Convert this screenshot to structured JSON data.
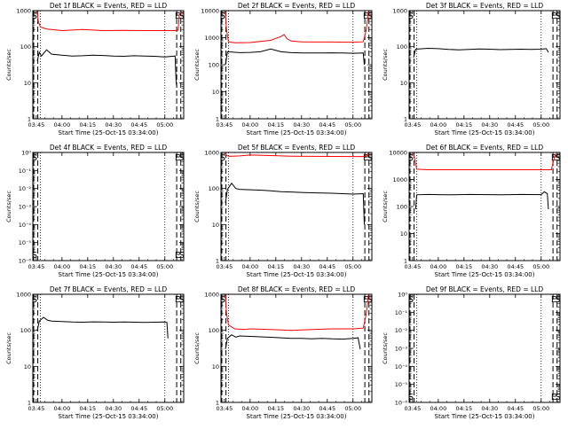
{
  "chart_data": [
    {
      "type": "line",
      "title": "Det 1f BLACK = Events, RED = LLD",
      "ylabel": "Counts/sec",
      "xlabel": "Start Time (25-Oct-15 03:34:00)",
      "xlim": [
        3.7167,
        5.1833
      ],
      "x_ticks": [
        "03:45",
        "04:00",
        "04:15",
        "04:30",
        "04:45",
        "05:00"
      ],
      "yscale": "log",
      "y_ticks": [
        {
          "value": 1000,
          "label": "1000"
        },
        {
          "value": 100,
          "label": "100"
        },
        {
          "value": 10,
          "label": "10"
        },
        {
          "value": 1,
          "label": "1"
        }
      ],
      "dashed_markers": [
        3.725,
        3.765,
        5.115,
        5.155
      ],
      "dotted_markers": [
        3.79,
        5.0
      ],
      "marker_labels": [
        {
          "text": "S",
          "x": 3.725
        },
        {
          "text": "E",
          "x": 5.115
        },
        {
          "text": "S",
          "x": 5.155
        }
      ],
      "series": [
        {
          "color": "#000000",
          "x": [
            3.76,
            3.78,
            3.8,
            3.85,
            3.9,
            4.0,
            4.1,
            4.2,
            4.3,
            4.4,
            4.5,
            4.6,
            4.7,
            4.8,
            4.9,
            5.0,
            5.1,
            5.11,
            5.115
          ],
          "y": [
            40,
            70,
            55,
            82,
            62,
            58,
            55,
            56,
            58,
            57,
            55,
            54,
            56,
            55,
            54,
            52,
            55,
            10,
            8
          ]
        },
        {
          "color": "#ff0000",
          "x": [
            3.76,
            3.77,
            3.79,
            3.85,
            4.0,
            4.2,
            4.4,
            4.6,
            4.8,
            5.0,
            5.1,
            5.13,
            5.14,
            5.16
          ],
          "y": [
            950,
            500,
            350,
            310,
            280,
            300,
            280,
            285,
            280,
            280,
            280,
            290,
            750,
            950
          ]
        }
      ]
    },
    {
      "type": "line",
      "title": "Det 2f BLACK = Events, RED = LLD",
      "ylabel": "Counts/sec",
      "xlabel": "Start Time (25-Oct-15 03:34:00)",
      "xlim": [
        3.7167,
        5.1833
      ],
      "x_ticks": [
        "03:45",
        "04:00",
        "04:15",
        "04:30",
        "04:45",
        "05:00"
      ],
      "yscale": "log",
      "y_ticks": [
        {
          "value": 10000,
          "label": "10000"
        },
        {
          "value": 1000,
          "label": "1000"
        },
        {
          "value": 100,
          "label": "100"
        },
        {
          "value": 10,
          "label": "10"
        },
        {
          "value": 1,
          "label": "1"
        }
      ],
      "dashed_markers": [
        3.725,
        3.765,
        5.115,
        5.155
      ],
      "dotted_markers": [
        3.79,
        5.0
      ],
      "marker_labels": [
        {
          "text": "S",
          "x": 3.725
        },
        {
          "text": "E",
          "x": 5.115
        },
        {
          "text": "S",
          "x": 5.155
        }
      ],
      "series": [
        {
          "color": "#000000",
          "x": [
            3.76,
            3.78,
            3.9,
            4.0,
            4.1,
            4.2,
            4.3,
            4.4,
            4.5,
            4.6,
            4.7,
            4.8,
            4.9,
            5.0,
            5.1,
            5.11
          ],
          "y": [
            100,
            300,
            280,
            285,
            300,
            380,
            300,
            280,
            270,
            270,
            270,
            275,
            270,
            265,
            270,
            100
          ]
        },
        {
          "color": "#ff0000",
          "x": [
            3.76,
            3.77,
            3.79,
            3.85,
            4.0,
            4.2,
            4.3,
            4.33,
            4.36,
            4.4,
            4.5,
            4.6,
            4.8,
            5.0,
            5.1,
            5.13,
            5.15
          ],
          "y": [
            9000,
            2000,
            700,
            650,
            660,
            800,
            1100,
            1300,
            900,
            750,
            700,
            690,
            690,
            680,
            700,
            2000,
            9000
          ]
        }
      ]
    },
    {
      "type": "line",
      "title": "Det 3f BLACK = Events, RED = LLD",
      "ylabel": "Counts/sec",
      "xlabel": "Start Time (25-Oct-15 03:34:00)",
      "xlim": [
        3.7167,
        5.1833
      ],
      "x_ticks": [
        "03:45",
        "04:00",
        "04:15",
        "04:30",
        "04:45",
        "05:00"
      ],
      "yscale": "log",
      "y_ticks": [
        {
          "value": 1000,
          "label": "1000"
        },
        {
          "value": 100,
          "label": "100"
        },
        {
          "value": 10,
          "label": "10"
        },
        {
          "value": 1,
          "label": "1"
        }
      ],
      "dashed_markers": [
        3.725,
        3.765,
        5.115,
        5.155
      ],
      "dotted_markers": [
        3.79,
        5.0
      ],
      "marker_labels": [
        {
          "text": "S",
          "x": 3.725
        },
        {
          "text": "E",
          "x": 5.115
        },
        {
          "text": "S",
          "x": 5.155
        }
      ],
      "series": [
        {
          "color": "#000000",
          "x": [
            3.76,
            3.78,
            3.9,
            4.0,
            4.1,
            4.2,
            4.3,
            4.4,
            4.5,
            4.6,
            4.7,
            4.8,
            4.9,
            5.0,
            5.05,
            5.07
          ],
          "y": [
            50,
            85,
            90,
            88,
            84,
            82,
            84,
            86,
            85,
            83,
            84,
            85,
            84,
            85,
            88,
            70
          ]
        }
      ]
    },
    {
      "type": "line",
      "title": "Det 4f BLACK = Events, RED = LLD",
      "ylabel": "Counts/sec",
      "xlabel": "Start Time (25-Oct-15 03:34:00)",
      "xlim": [
        3.7167,
        5.1833
      ],
      "x_ticks": [
        "03:45",
        "04:00",
        "04:15",
        "04:30",
        "04:45",
        "05:00"
      ],
      "yscale": "log",
      "y_ticks": [
        {
          "value": 1e-06,
          "label": "10⁻⁶"
        },
        {
          "value": 1e-05,
          "label": "10⁻⁵"
        },
        {
          "value": 0.0001,
          "label": "10⁻⁴"
        },
        {
          "value": 0.001,
          "label": "10⁻³"
        },
        {
          "value": 0.01,
          "label": "10⁻²"
        },
        {
          "value": 0.1,
          "label": "10⁻¹"
        },
        {
          "value": 1,
          "label": "10⁰"
        }
      ],
      "dashed_markers": [
        3.725,
        3.765,
        5.115,
        5.155
      ],
      "dotted_markers": [
        3.79,
        5.0
      ],
      "marker_labels": [
        {
          "text": "S",
          "x": 3.725
        },
        {
          "text": "E",
          "x": 5.115
        },
        {
          "text": "S",
          "x": 5.155
        }
      ],
      "series": []
    },
    {
      "type": "line",
      "title": "Det 5f BLACK = Events, RED = LLD",
      "ylabel": "Counts/sec",
      "xlabel": "Start Time (25-Oct-15 03:34:00)",
      "xlim": [
        3.7167,
        5.1833
      ],
      "x_ticks": [
        "03:45",
        "04:00",
        "04:15",
        "04:30",
        "04:45",
        "05:00"
      ],
      "yscale": "log",
      "y_ticks": [
        {
          "value": 1000,
          "label": "1000"
        },
        {
          "value": 100,
          "label": "100"
        },
        {
          "value": 10,
          "label": "10"
        },
        {
          "value": 1,
          "label": "1"
        }
      ],
      "dashed_markers": [
        3.725,
        3.765,
        5.115,
        5.155
      ],
      "dotted_markers": [
        3.79,
        5.0
      ],
      "marker_labels": [
        {
          "text": "S",
          "x": 3.725
        },
        {
          "text": "E",
          "x": 5.115
        },
        {
          "text": "S",
          "x": 5.155
        }
      ],
      "series": [
        {
          "color": "#000000",
          "x": [
            3.76,
            3.78,
            3.82,
            3.86,
            3.9,
            4.0,
            4.1,
            4.2,
            4.3,
            4.4,
            4.5,
            4.6,
            4.7,
            4.8,
            4.9,
            5.0,
            5.1,
            5.11
          ],
          "y": [
            40,
            95,
            140,
            100,
            95,
            92,
            90,
            86,
            82,
            80,
            78,
            76,
            75,
            74,
            72,
            70,
            72,
            10
          ]
        },
        {
          "color": "#ff0000",
          "x": [
            3.76,
            3.77,
            3.8,
            3.9,
            4.0,
            4.2,
            4.4,
            4.6,
            4.8,
            5.0,
            5.1,
            5.13,
            5.15
          ],
          "y": [
            950,
            820,
            780,
            800,
            850,
            820,
            790,
            780,
            775,
            770,
            770,
            800,
            950
          ]
        }
      ]
    },
    {
      "type": "line",
      "title": "Det 6f BLACK = Events, RED = LLD",
      "ylabel": "Counts/sec",
      "xlabel": "Start Time (25-Oct-15 03:34:00)",
      "xlim": [
        3.7167,
        5.1833
      ],
      "x_ticks": [
        "03:45",
        "04:00",
        "04:15",
        "04:30",
        "04:45",
        "05:00"
      ],
      "yscale": "log",
      "y_ticks": [
        {
          "value": 10000,
          "label": "10000"
        },
        {
          "value": 1000,
          "label": "1000"
        },
        {
          "value": 100,
          "label": "100"
        },
        {
          "value": 10,
          "label": "10"
        },
        {
          "value": 1,
          "label": "1"
        }
      ],
      "dashed_markers": [
        3.725,
        3.765,
        5.115,
        5.155
      ],
      "dotted_markers": [
        3.79,
        5.0
      ],
      "marker_labels": [
        {
          "text": "S",
          "x": 3.725
        },
        {
          "text": "E",
          "x": 5.115
        },
        {
          "text": "S",
          "x": 5.155
        }
      ],
      "series": [
        {
          "color": "#000000",
          "x": [
            3.78,
            3.79,
            3.9,
            4.0,
            4.1,
            4.2,
            4.3,
            4.4,
            4.5,
            4.6,
            4.7,
            4.8,
            4.9,
            5.0,
            5.03,
            5.06,
            5.07
          ],
          "y": [
            80,
            270,
            280,
            275,
            270,
            275,
            280,
            278,
            275,
            272,
            275,
            280,
            278,
            275,
            350,
            300,
            80
          ]
        },
        {
          "color": "#ff0000",
          "x": [
            3.76,
            3.775,
            3.79,
            3.9,
            4.0,
            4.2,
            4.4,
            4.6,
            4.8,
            5.0,
            5.1,
            5.12,
            5.14
          ],
          "y": [
            9000,
            5000,
            2400,
            2300,
            2300,
            2300,
            2300,
            2300,
            2300,
            2300,
            2300,
            5000,
            9000
          ]
        }
      ]
    },
    {
      "type": "line",
      "title": "Det 7f BLACK = Events, RED = LLD",
      "ylabel": "Counts/sec",
      "xlabel": "Start Time (25-Oct-15 03:34:00)",
      "xlim": [
        3.7167,
        5.1833
      ],
      "x_ticks": [
        "03:45",
        "04:00",
        "04:15",
        "04:30",
        "04:45",
        "05:00"
      ],
      "yscale": "log",
      "y_ticks": [
        {
          "value": 1000,
          "label": "1000"
        },
        {
          "value": 100,
          "label": "100"
        },
        {
          "value": 10,
          "label": "10"
        },
        {
          "value": 1,
          "label": "1"
        }
      ],
      "dashed_markers": [
        3.725,
        3.765,
        5.115,
        5.155
      ],
      "dotted_markers": [
        3.79,
        5.0
      ],
      "marker_labels": [
        {
          "text": "S",
          "x": 3.725
        },
        {
          "text": "E",
          "x": 5.115
        },
        {
          "text": "S",
          "x": 5.155
        }
      ],
      "series": [
        {
          "color": "#000000",
          "x": [
            3.76,
            3.78,
            3.82,
            3.86,
            3.9,
            4.0,
            4.1,
            4.2,
            4.3,
            4.4,
            4.5,
            4.6,
            4.7,
            4.8,
            4.9,
            5.0,
            5.02,
            5.03
          ],
          "y": [
            100,
            180,
            230,
            190,
            180,
            175,
            170,
            168,
            172,
            170,
            168,
            170,
            168,
            165,
            168,
            170,
            165,
            60
          ]
        }
      ]
    },
    {
      "type": "line",
      "title": "Det 8f BLACK = Events, RED = LLD",
      "ylabel": "Counts/sec",
      "xlabel": "Start Time (25-Oct-15 03:34:00)",
      "xlim": [
        3.7167,
        5.1833
      ],
      "x_ticks": [
        "03:45",
        "04:00",
        "04:15",
        "04:30",
        "04:45",
        "05:00"
      ],
      "yscale": "log",
      "y_ticks": [
        {
          "value": 1000,
          "label": "1000"
        },
        {
          "value": 100,
          "label": "100"
        },
        {
          "value": 10,
          "label": "10"
        },
        {
          "value": 1,
          "label": "1"
        }
      ],
      "dashed_markers": [
        3.725,
        3.765,
        5.115,
        5.155
      ],
      "dotted_markers": [
        3.79,
        5.0
      ],
      "marker_labels": [
        {
          "text": "S",
          "x": 3.725
        },
        {
          "text": "E",
          "x": 5.115
        },
        {
          "text": "S",
          "x": 5.155
        }
      ],
      "series": [
        {
          "color": "#000000",
          "x": [
            3.76,
            3.78,
            3.82,
            3.86,
            3.9,
            4.0,
            4.1,
            4.2,
            4.3,
            4.4,
            4.5,
            4.6,
            4.7,
            4.8,
            4.9,
            5.0,
            5.05,
            5.07
          ],
          "y": [
            30,
            60,
            75,
            65,
            70,
            68,
            66,
            64,
            62,
            60,
            60,
            58,
            60,
            58,
            57,
            60,
            62,
            30
          ]
        },
        {
          "color": "#ff0000",
          "x": [
            3.76,
            3.77,
            3.79,
            3.85,
            3.95,
            4.0,
            4.2,
            4.4,
            4.6,
            4.8,
            5.0,
            5.1,
            5.13,
            5.15
          ],
          "y": [
            950,
            300,
            140,
            110,
            105,
            110,
            105,
            100,
            105,
            110,
            110,
            115,
            300,
            950
          ]
        }
      ]
    },
    {
      "type": "line",
      "title": "Det 9f BLACK = Events, RED = LLD",
      "ylabel": "Counts/sec",
      "xlabel": "Start Time (25-Oct-15 03:34:00)",
      "xlim": [
        3.7167,
        5.1833
      ],
      "x_ticks": [
        "03:45",
        "04:00",
        "04:15",
        "04:30",
        "04:45",
        "05:00"
      ],
      "yscale": "log",
      "y_ticks": [
        {
          "value": 1e-06,
          "label": "10⁻⁶"
        },
        {
          "value": 1e-05,
          "label": "10⁻⁵"
        },
        {
          "value": 0.0001,
          "label": "10⁻⁴"
        },
        {
          "value": 0.001,
          "label": "10⁻³"
        },
        {
          "value": 0.01,
          "label": "10⁻²"
        },
        {
          "value": 0.1,
          "label": "10⁻¹"
        },
        {
          "value": 1,
          "label": "10⁰"
        }
      ],
      "dashed_markers": [
        3.725,
        3.765,
        5.115,
        5.155
      ],
      "dotted_markers": [
        3.79,
        5.0
      ],
      "marker_labels": [
        {
          "text": "S",
          "x": 3.725
        },
        {
          "text": "E",
          "x": 5.115
        },
        {
          "text": "S",
          "x": 5.155
        }
      ],
      "series": []
    }
  ]
}
